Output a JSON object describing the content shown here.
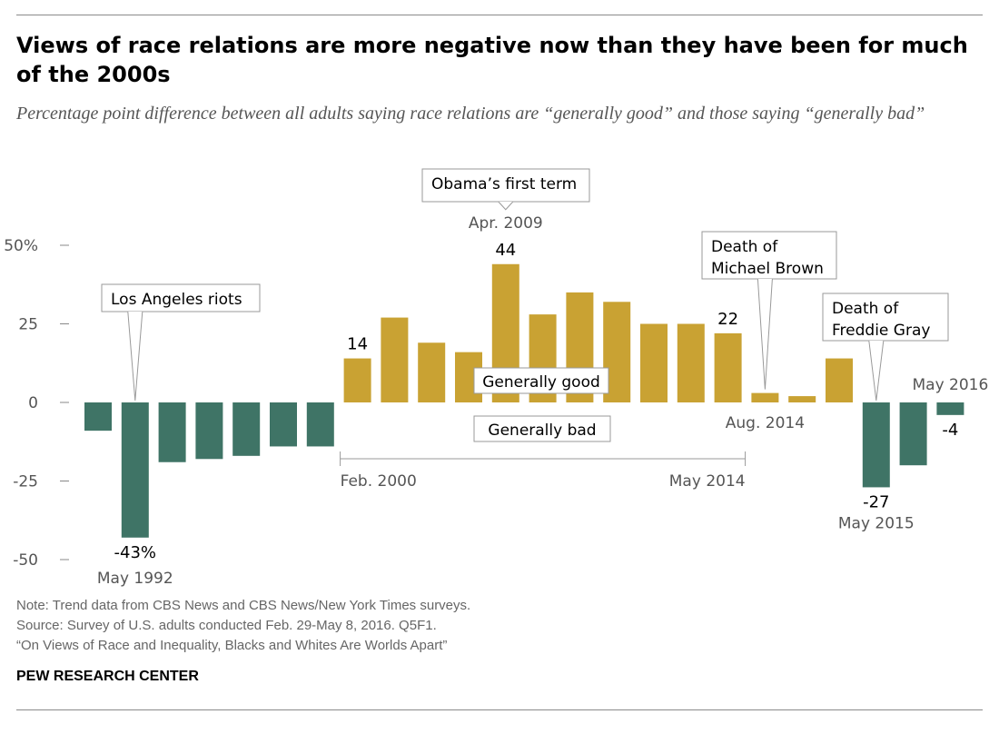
{
  "title": "Views of race relations are more negative now than they have been for much of the 2000s",
  "subtitle": "Percentage point difference between all adults saying race relations are “generally good” and those saying “generally bad”",
  "colors": {
    "positive": "#c9a233",
    "negative": "#3f7466",
    "axis": "#888888",
    "text": "#555555"
  },
  "chart_data": {
    "type": "bar",
    "ylim": [
      -50,
      50
    ],
    "yticks": [
      50,
      25,
      0,
      -25,
      -50
    ],
    "ytick_labels": [
      "50%",
      "25",
      "0",
      "-25",
      "-50"
    ],
    "values": [
      -9,
      -43,
      -19,
      -18,
      -17,
      -14,
      -14,
      14,
      27,
      19,
      16,
      44,
      28,
      35,
      32,
      25,
      25,
      22,
      3,
      2,
      14,
      -27,
      -20,
      -4
    ],
    "data_labels": [
      {
        "index": 1,
        "text": "-43%"
      },
      {
        "index": 7,
        "text": "14"
      },
      {
        "index": 11,
        "text": "44"
      },
      {
        "index": 17,
        "text": "22"
      },
      {
        "index": 21,
        "text": "-27"
      },
      {
        "index": 23,
        "text": "-4"
      }
    ],
    "date_labels": [
      {
        "index": 1,
        "text": "May 1992"
      },
      {
        "index": 11,
        "text": "Apr. 2009"
      },
      {
        "index": 18,
        "text": "Aug. 2014"
      },
      {
        "index": 21,
        "text": "May 2015"
      },
      {
        "index": 23,
        "text": "May 2016"
      }
    ],
    "bracket": {
      "start_index": 7,
      "end_index": 17,
      "start_label": "Feb. 2000",
      "end_label": "May 2014"
    },
    "annotations": [
      {
        "index": 1,
        "text": [
          "Los Angeles riots"
        ]
      },
      {
        "index": 11,
        "text": [
          "Obama’s first term"
        ]
      },
      {
        "index": 18,
        "text": [
          "Death of",
          "Michael Brown"
        ]
      },
      {
        "index": 21,
        "text": [
          "Death of",
          "Freddie Gray"
        ]
      }
    ],
    "legend": {
      "good": "Generally good",
      "bad": "Generally bad"
    }
  },
  "notes": {
    "note": "Note: Trend data from CBS News and CBS News/New York Times surveys.",
    "source": "Source: Survey of U.S. adults conducted Feb. 29-May 8, 2016. Q5F1.",
    "report": "“On Views of Race and Inequality, Blacks and Whites Are Worlds Apart”"
  },
  "brand": "PEW RESEARCH CENTER"
}
